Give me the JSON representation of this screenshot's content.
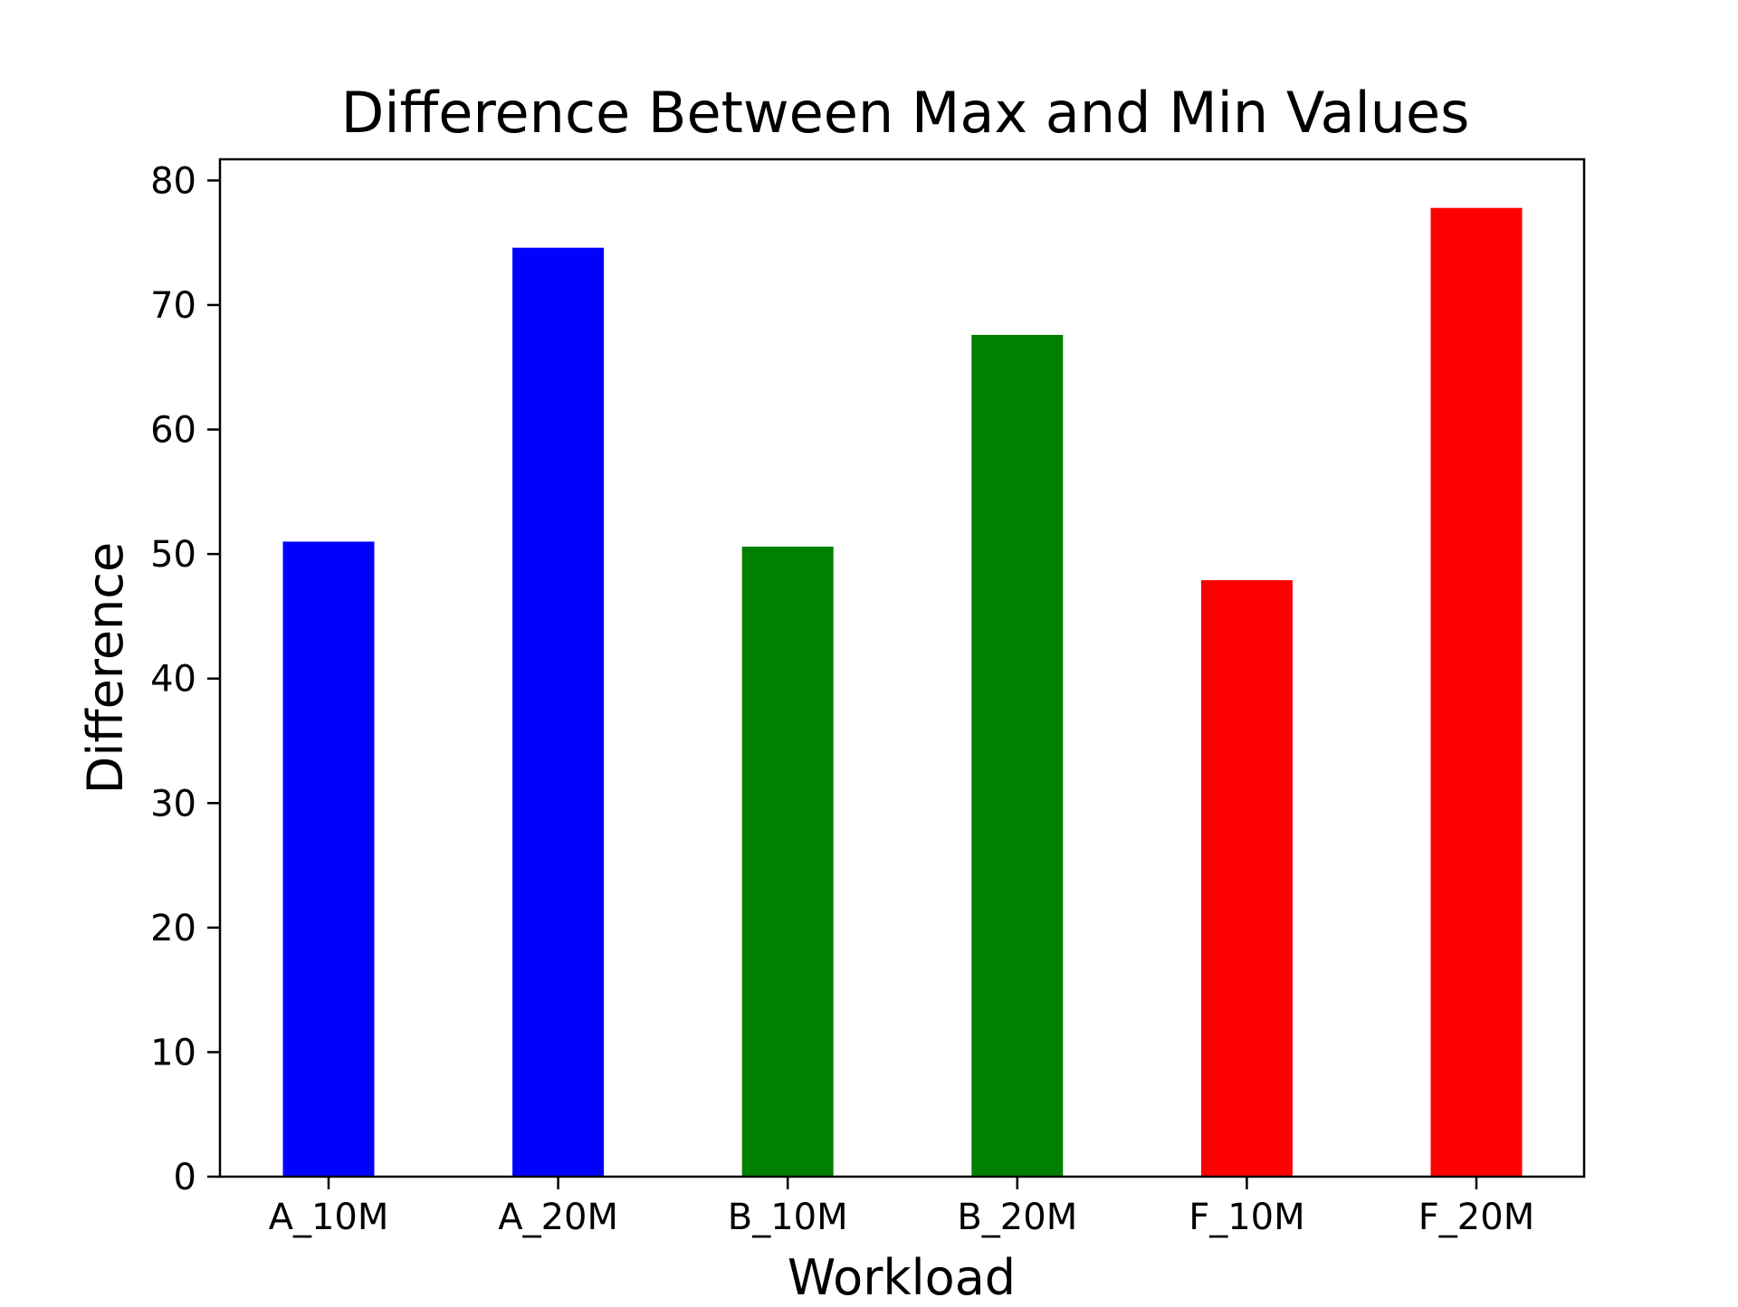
{
  "chart_data": {
    "type": "bar",
    "title": "Difference Between Max and Min Values",
    "xlabel": "Workload",
    "ylabel": "Difference",
    "categories": [
      "A_10M",
      "A_20M",
      "B_10M",
      "B_20M",
      "F_10M",
      "F_20M"
    ],
    "values": [
      51.0,
      74.6,
      50.6,
      67.6,
      47.9,
      77.8
    ],
    "bar_colors": [
      "#0000ff",
      "#0000ff",
      "#008000",
      "#008000",
      "#ff0000",
      "#ff0000"
    ],
    "ylim": [
      0,
      81.7
    ],
    "yticks": [
      0,
      10,
      20,
      30,
      40,
      50,
      60,
      70,
      80
    ],
    "grid": false,
    "legend": "none"
  }
}
